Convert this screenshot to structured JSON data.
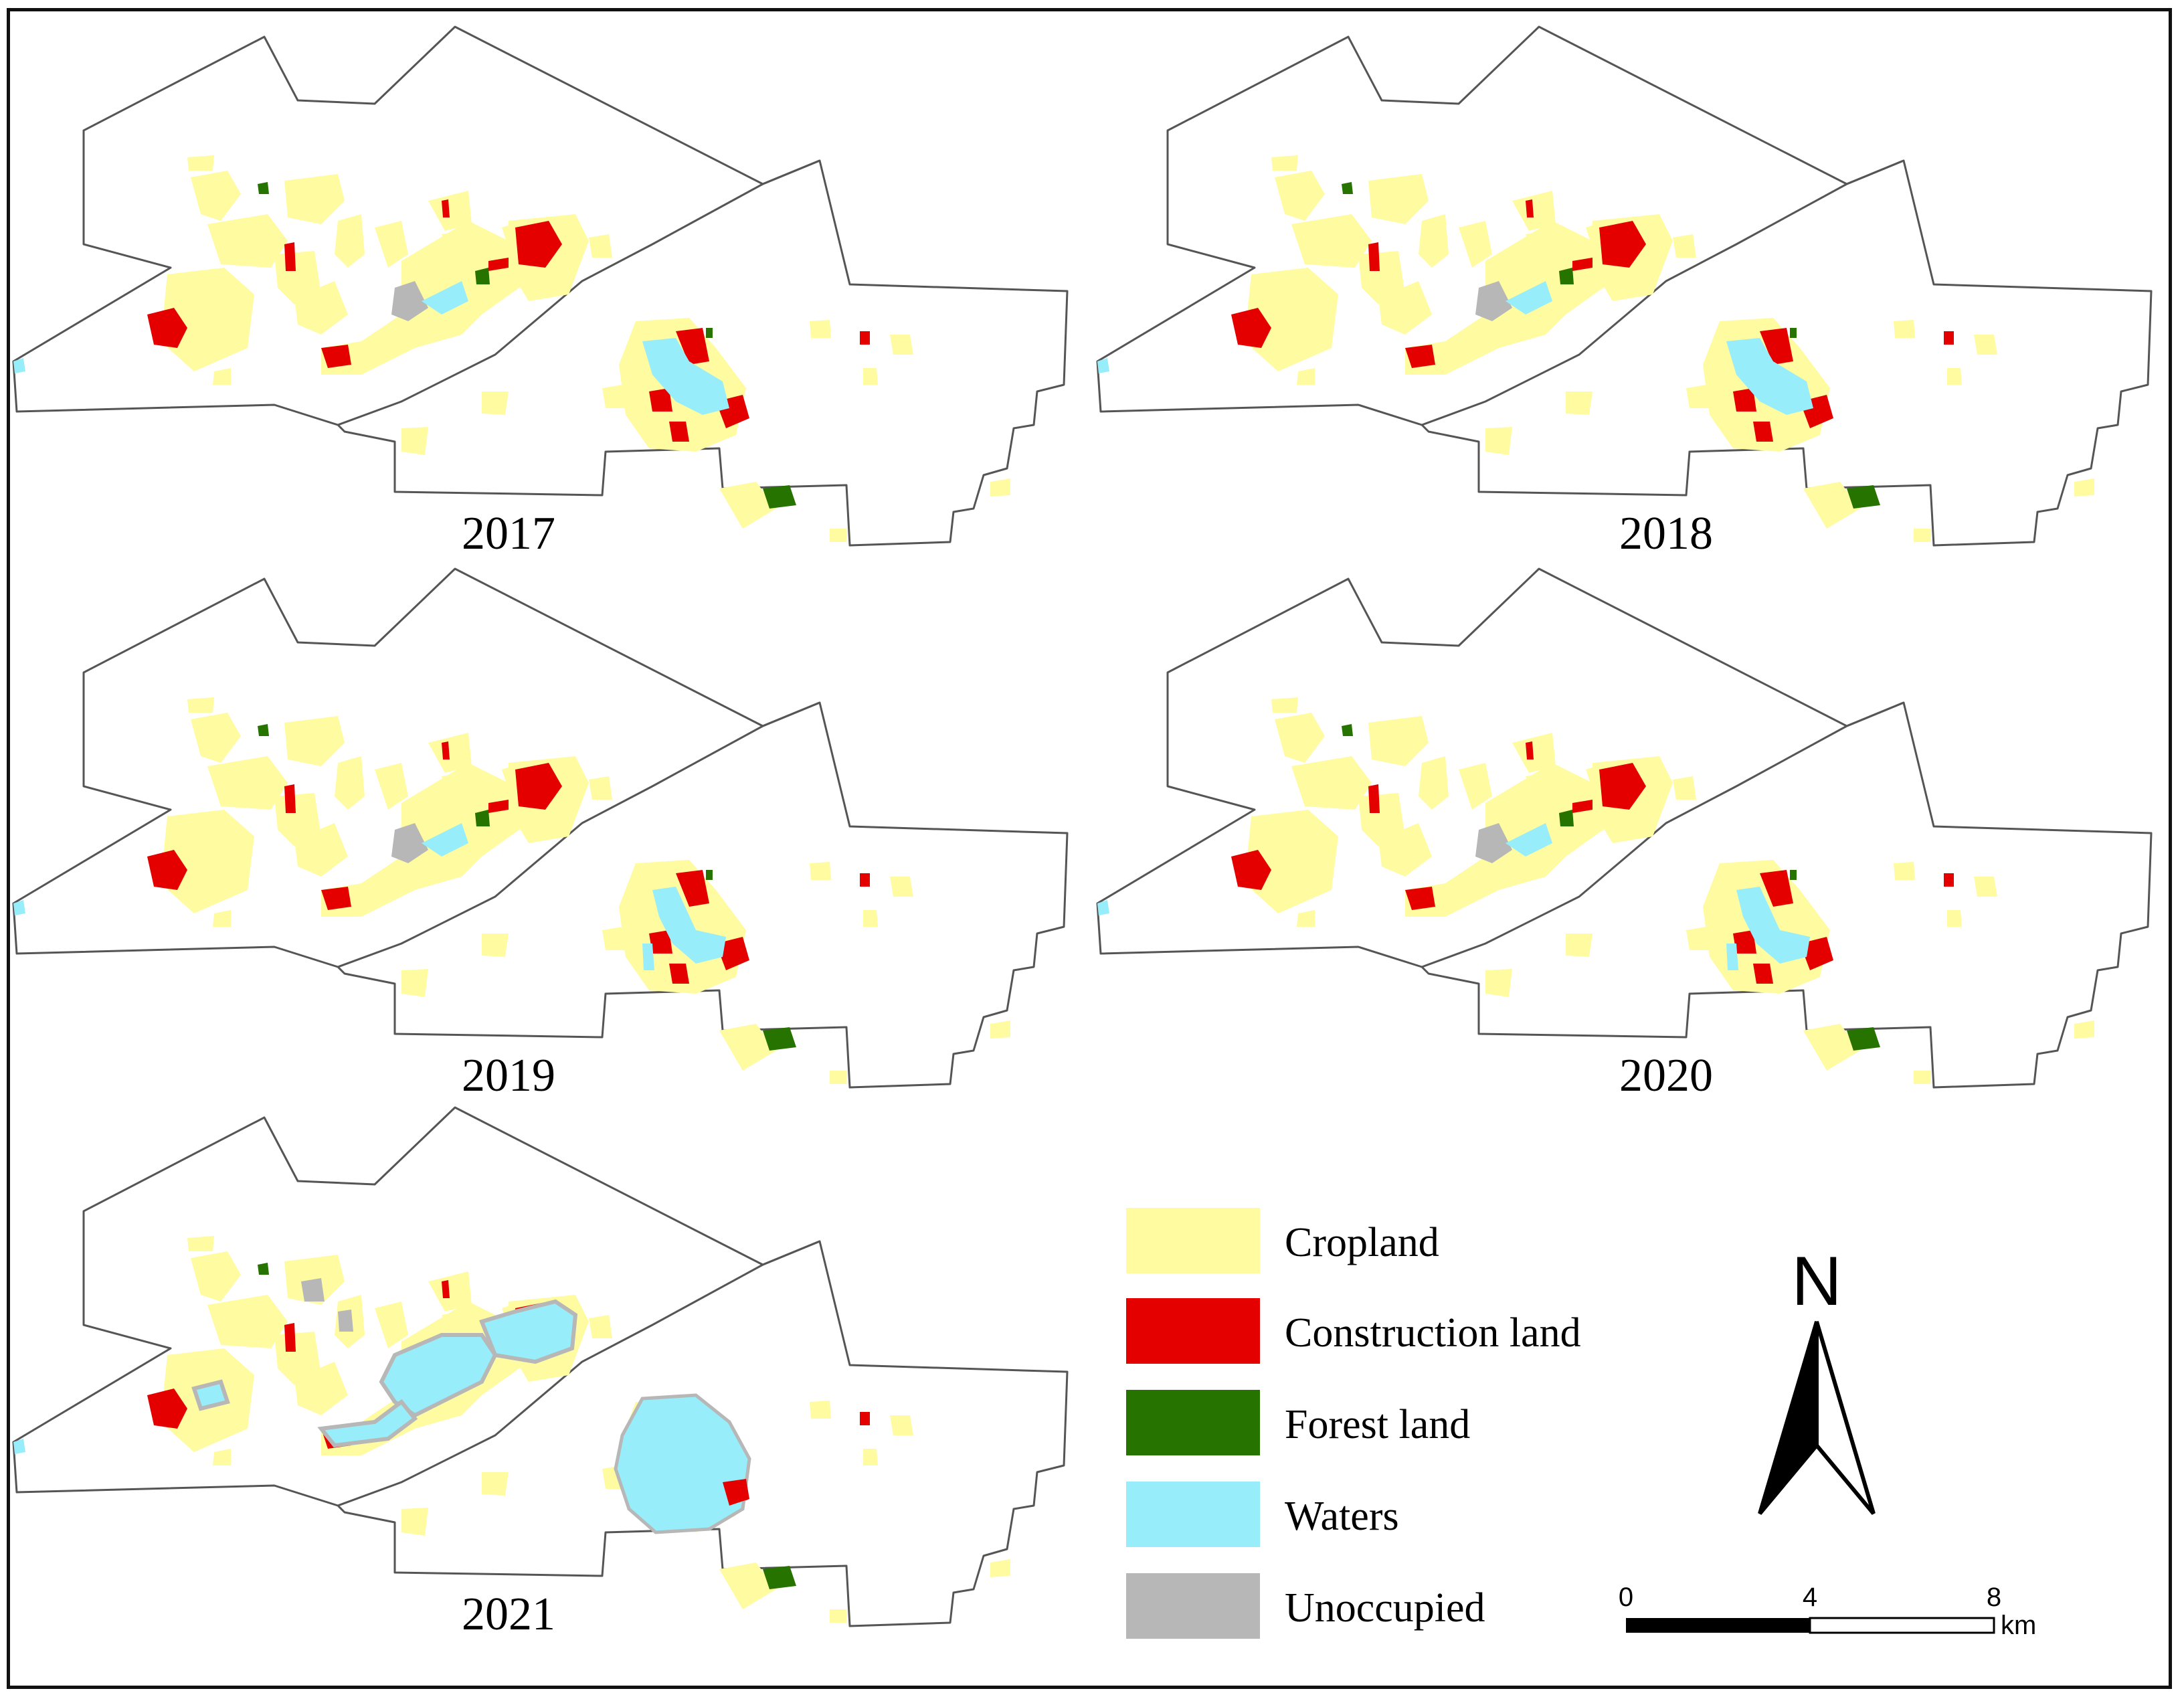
{
  "panels": [
    {
      "id": "2017",
      "label": "2017"
    },
    {
      "id": "2018",
      "label": "2018"
    },
    {
      "id": "2019",
      "label": "2019"
    },
    {
      "id": "2020",
      "label": "2020"
    },
    {
      "id": "2021",
      "label": "2021"
    }
  ],
  "legend": {
    "items": [
      {
        "label": "Cropland",
        "color": "#FFFBA0"
      },
      {
        "label": "Construction land",
        "color": "#E50000"
      },
      {
        "label": "Forest land",
        "color": "#267300"
      },
      {
        "label": "Waters",
        "color": "#97EEFA"
      },
      {
        "label": "Unoccupied",
        "color": "#B7B7B7"
      }
    ]
  },
  "north_arrow": {
    "label": "N"
  },
  "scale_bar": {
    "ticks": [
      "0",
      "4",
      "8"
    ],
    "unit": "km"
  },
  "colors": {
    "cropland": "#FFFBA0",
    "construction": "#E50000",
    "forest": "#267300",
    "waters": "#97EEFA",
    "unoccupied": "#B7B7B7",
    "boundary": "#555555"
  }
}
